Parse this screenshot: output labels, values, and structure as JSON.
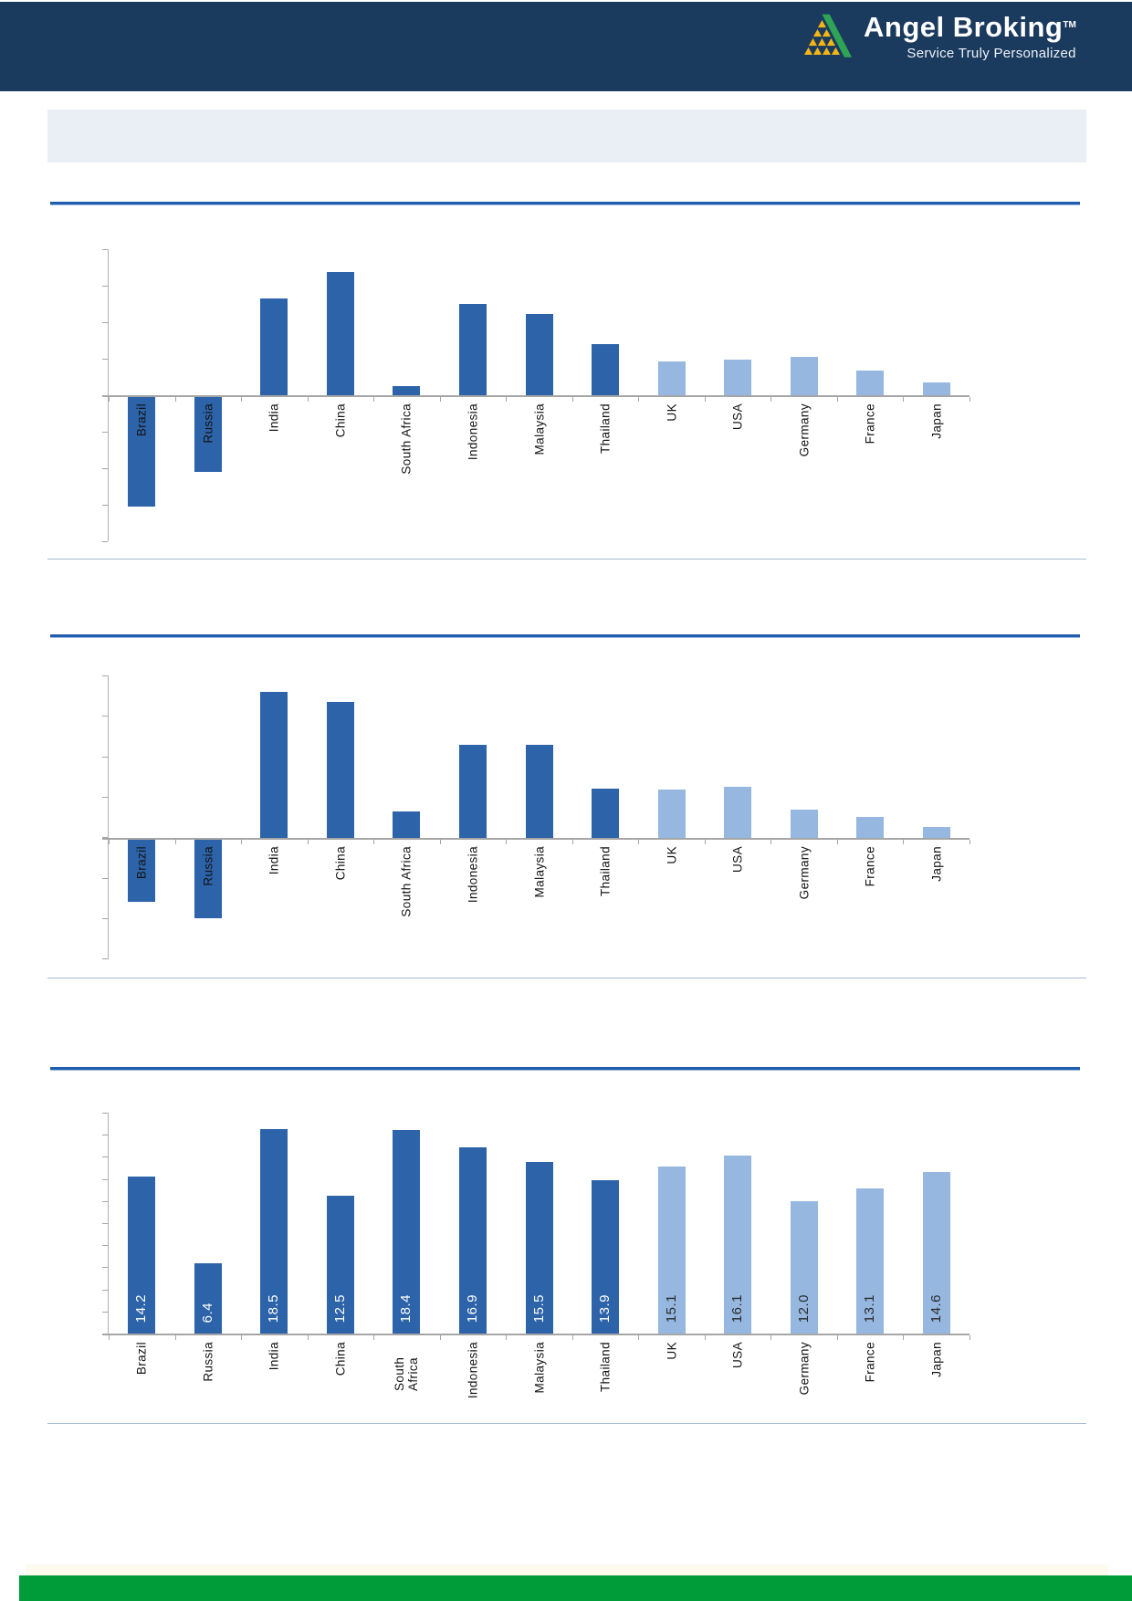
{
  "header": {
    "brand": "Angel Broking",
    "trademark": "TM",
    "tagline": "Service Truly Personalized",
    "bg_color": "#1a3a5e",
    "logo_yellow": "#f5b515",
    "logo_green": "#2fa356"
  },
  "banner": {
    "text": "",
    "bg_color": "#e9eff5"
  },
  "colors": {
    "bar_dark_blue": "#2d63a8",
    "bar_light_blue": "#95b7e0",
    "axis_gray": "#a6a6a6",
    "rule_blue": "#1f5dac",
    "separator_blue": "#a6bcd4",
    "footer_green": "#009c3a",
    "value_label_on_dark": "#ffffff",
    "value_label_on_light": "#2b2b2b"
  },
  "chart_data": [
    {
      "id": "chart-1",
      "type": "bar",
      "title": "",
      "categories": [
        "Brazil",
        "Russia",
        "India",
        "China",
        "South Africa",
        "Indonesia",
        "Malaysia",
        "Thailand",
        "UK",
        "USA",
        "Germany",
        "France",
        "Japan"
      ],
      "values": [
        -3.0,
        -2.06,
        2.65,
        3.38,
        0.25,
        2.5,
        2.23,
        1.4,
        0.93,
        0.98,
        1.05,
        0.68,
        0.35
      ],
      "ylim": [
        -4,
        4
      ],
      "ytick_interval": 1,
      "y_tick_labels_visible": false,
      "x_label_rotation_deg": 90,
      "grid": false,
      "legend": "none",
      "dark_group_count": 8,
      "note": "y-axis has tick marks but no numeric labels; values estimated in gridline units"
    },
    {
      "id": "chart-2",
      "type": "bar",
      "title": "",
      "categories": [
        "Brazil",
        "Russia",
        "India",
        "China",
        "South Africa",
        "Indonesia",
        "Malaysia",
        "Thailand",
        "UK",
        "USA",
        "Germany",
        "France",
        "Japan"
      ],
      "values": [
        -1.53,
        -1.93,
        3.6,
        3.35,
        0.66,
        2.3,
        2.3,
        1.21,
        1.19,
        1.27,
        0.7,
        0.53,
        0.28
      ],
      "ylim": [
        -3,
        4
      ],
      "ytick_interval": 1,
      "y_tick_labels_visible": false,
      "x_label_rotation_deg": 90,
      "grid": false,
      "legend": "none",
      "dark_group_count": 8,
      "note": "y-axis has tick marks but no numeric labels; values estimated in gridline units"
    },
    {
      "id": "chart-3",
      "type": "bar",
      "title": "",
      "categories": [
        "Brazil",
        "Russia",
        "India",
        "China",
        "South Africa",
        "Indonesia",
        "Malaysia",
        "Thailand",
        "UK",
        "USA",
        "Germany",
        "France",
        "Japan"
      ],
      "values": [
        14.2,
        6.4,
        18.5,
        12.5,
        18.4,
        16.9,
        15.5,
        13.9,
        15.1,
        16.1,
        12.0,
        13.1,
        14.6
      ],
      "value_labels": [
        "14.2",
        "6.4",
        "18.5",
        "12.5",
        "18.4",
        "16.9",
        "15.5",
        "13.9",
        "15.1",
        "16.1",
        "12.0",
        "13.1",
        "14.6"
      ],
      "ylim": [
        0,
        20
      ],
      "ytick_interval": 2,
      "y_tick_labels_visible": false,
      "x_label_rotation_deg": 90,
      "grid": false,
      "legend": "none",
      "dark_group_count": 8
    }
  ]
}
